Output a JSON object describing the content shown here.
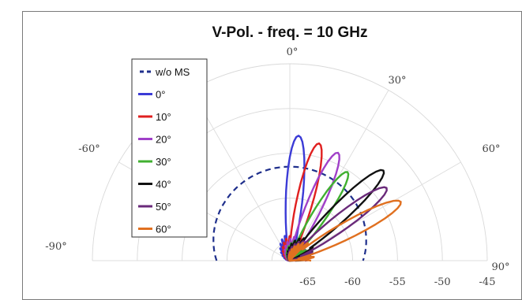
{
  "chart_data": {
    "type": "polar",
    "title": "V-Pol. - freq. = 10 GHz",
    "angle_ticks": [
      {
        "angle": 0,
        "label": "0°"
      },
      {
        "angle": 30,
        "label": "30°"
      },
      {
        "angle": 60,
        "label": "60°"
      },
      {
        "angle": 90,
        "label": "90°"
      },
      {
        "angle": -60,
        "label": "-60°"
      },
      {
        "angle": -90,
        "label": "-90°"
      }
    ],
    "radial_ticks": [
      "-65",
      "-60",
      "-55",
      "-50",
      "-45"
    ],
    "radial_range": [
      -67,
      -45
    ],
    "legend_position": "top-left",
    "series": [
      {
        "name": "w/o MS",
        "color": "#1f2f8c",
        "dashed": true,
        "peak_angle": 0,
        "peak_value": -56.5,
        "width": 75
      },
      {
        "name": "0°",
        "color": "#3b3bd6",
        "dashed": false,
        "peak_angle": 4,
        "peak_value": -53.0,
        "width": 6.5
      },
      {
        "name": "10°",
        "color": "#e02020",
        "dashed": false,
        "peak_angle": 14,
        "peak_value": -53.5,
        "width": 6.5
      },
      {
        "name": "20°",
        "color": "#a040c8",
        "dashed": false,
        "peak_angle": 24,
        "peak_value": -53.8,
        "width": 6.5
      },
      {
        "name": "30°",
        "color": "#40b030",
        "dashed": false,
        "peak_angle": 33,
        "peak_value": -55.2,
        "width": 6.5
      },
      {
        "name": "40°",
        "color": "#111111",
        "dashed": false,
        "peak_angle": 46,
        "peak_value": -52.5,
        "width": 6.5
      },
      {
        "name": "50°",
        "color": "#6a2a7a",
        "dashed": false,
        "peak_angle": 53,
        "peak_value": -53.5,
        "width": 6.5
      },
      {
        "name": "60°",
        "color": "#e07020",
        "dashed": false,
        "peak_angle": 62,
        "peak_value": -53.0,
        "width": 6.5
      }
    ]
  }
}
